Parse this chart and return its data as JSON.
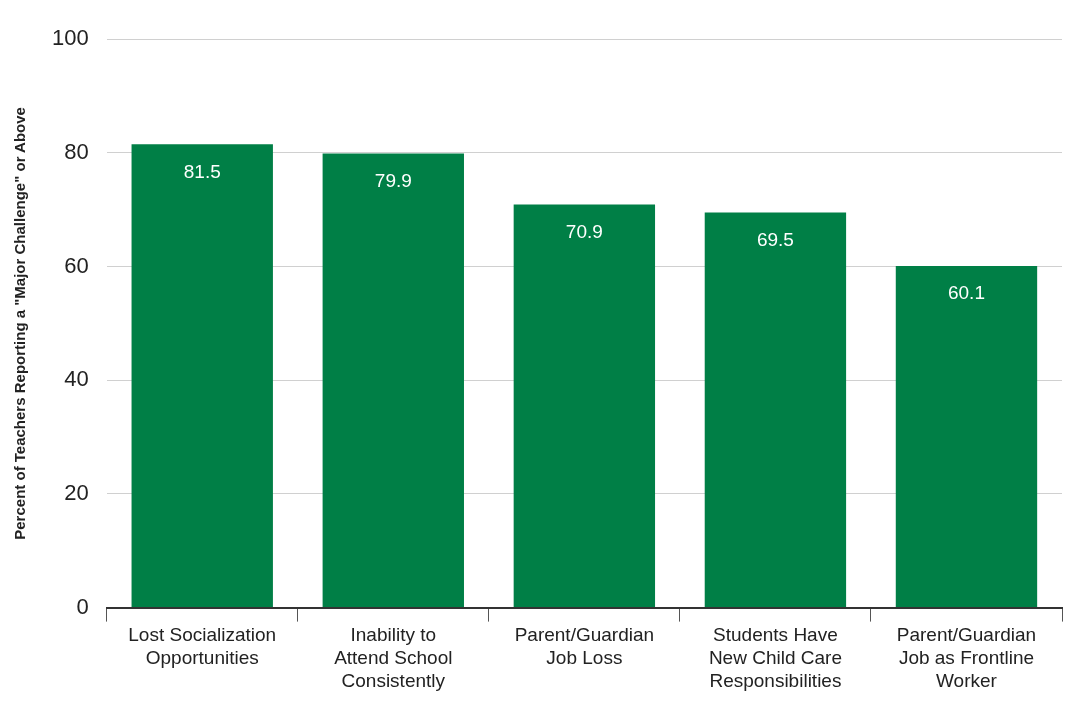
{
  "chart_data": {
    "type": "bar",
    "ylabel": "Percent of Teachers Reporting a \"Major Challenge\" or Above",
    "categories": [
      "Lost Socialization\nOpportunities",
      "Inability to\nAttend School\nConsistently",
      "Parent/Guardian\nJob Loss",
      "Students Have\nNew Child Care\nResponsibilities",
      "Parent/Guardian\nJob as Frontline\nWorker"
    ],
    "values": [
      81.5,
      79.9,
      70.9,
      69.5,
      60.1
    ],
    "color": "#007f46",
    "ylim": [
      0,
      100
    ],
    "yticks": [
      0,
      20,
      40,
      60,
      80,
      100
    ],
    "grid": "y",
    "legend": false,
    "data_labels": true
  }
}
